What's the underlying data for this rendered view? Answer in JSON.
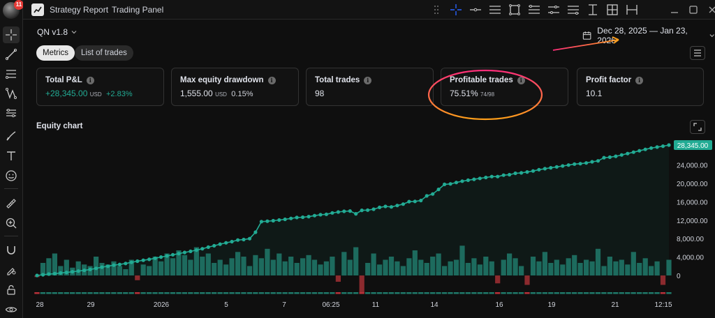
{
  "user": {
    "notification_count": "11"
  },
  "tabs": [
    {
      "label": "Strategy Report",
      "active": true
    },
    {
      "label": "Trading Panel",
      "active": false
    }
  ],
  "header": {
    "strategy_name": "QN v1.8",
    "date_range": "Dec 28, 2025 — Jan 23, 2026"
  },
  "segments": {
    "metrics_label": "Metrics",
    "trades_label": "List of trades"
  },
  "metrics": [
    {
      "label": "Total P&L",
      "value": "+28,345.00",
      "unit": "USD",
      "sub": "+2.83%",
      "positive": true
    },
    {
      "label": "Max equity drawdown",
      "value": "1,555.00",
      "unit": "USD",
      "sub": "0.15%",
      "positive": false
    },
    {
      "label": "Total trades",
      "value": "98",
      "unit": "",
      "sub": "",
      "positive": false
    },
    {
      "label": "Profitable trades",
      "value": "75.51%",
      "unit": "",
      "sub": "74/98",
      "positive": false
    },
    {
      "label": "Profit factor",
      "value": "10.1",
      "unit": "",
      "sub": "",
      "positive": false
    }
  ],
  "chart_title": "Equity chart",
  "chart_data": {
    "type": "line",
    "title": "Equity chart",
    "x_tick_labels": [
      "28",
      "29",
      "2026",
      "5",
      "7",
      "06:25",
      "11",
      "14",
      "16",
      "19",
      "21",
      "12:15"
    ],
    "y_ticks": [
      0,
      4000,
      8000,
      12000,
      16000,
      20000,
      24000
    ],
    "y_tick_labels": [
      "0",
      "4,000.00",
      "8,000.00",
      "12,000.00",
      "16,000.00",
      "20,000.00",
      "24,000.00"
    ],
    "ylim": [
      0,
      28345
    ],
    "last_value_label": "28,345.00",
    "series": [
      {
        "type": "line",
        "values": [
          0,
          150,
          300,
          400,
          550,
          650,
          800,
          950,
          1100,
          1300,
          1550,
          1800,
          2000,
          2250,
          2400,
          2600,
          2850,
          3100,
          3300,
          3500,
          3750,
          4000,
          4250,
          4500,
          4750,
          5000,
          5250,
          5500,
          5800,
          6150,
          6450,
          6800,
          7100,
          7350,
          7700,
          7800,
          8000,
          9400,
          11700,
          11800,
          11900,
          12050,
          12200,
          12400,
          12600,
          12650,
          12800,
          13000,
          13200,
          13300,
          13600,
          13800,
          13950,
          14000,
          13400,
          14150,
          14200,
          14400,
          14800,
          15000,
          14900,
          15200,
          15500,
          16050,
          16100,
          16300,
          17300,
          17700,
          18700,
          19800,
          19900,
          20200,
          20500,
          20700,
          20900,
          21100,
          21300,
          21500,
          21500,
          21800,
          21900,
          22200,
          22300,
          22500,
          22700,
          23000,
          23200,
          23400,
          23600,
          23800,
          24000,
          24200,
          24300,
          24450,
          24700,
          24900,
          25600,
          25700,
          25900,
          26200,
          26500,
          26800,
          27100,
          27400,
          27700,
          27900,
          28100,
          28345
        ]
      },
      {
        "type": "bar",
        "values": [
          -0.05,
          0.4,
          0.55,
          0.7,
          0.3,
          0.5,
          0.25,
          0.45,
          0.35,
          0.3,
          0.6,
          0.4,
          0.35,
          0.45,
          0.3,
          0.2,
          0.5,
          -0.15,
          0.35,
          0.3,
          0.6,
          0.45,
          0.7,
          0.55,
          0.8,
          0.65,
          0.5,
          0.9,
          0.6,
          0.7,
          0.4,
          0.5,
          0.35,
          0.55,
          0.75,
          0.6,
          0.3,
          0.65,
          0.55,
          0.85,
          0.5,
          0.7,
          0.45,
          0.6,
          0.4,
          0.55,
          0.65,
          0.5,
          0.35,
          0.45,
          0.6,
          -0.2,
          0.75,
          0.5,
          0.9,
          -0.55,
          0.4,
          0.7,
          0.35,
          0.5,
          0.6,
          0.45,
          0.3,
          0.55,
          0.8,
          0.5,
          0.4,
          0.6,
          0.7,
          0.3,
          0.45,
          0.5,
          0.95,
          0.4,
          0.55,
          0.35,
          0.6,
          0.45,
          -0.25,
          0.5,
          0.7,
          0.55,
          0.3,
          -0.3,
          0.6,
          0.45,
          0.75,
          0.4,
          0.5,
          0.35,
          0.55,
          0.65,
          0.4,
          0.5,
          0.45,
          0.85,
          0.3,
          0.6,
          0.45,
          0.5,
          0.35,
          0.75,
          0.4,
          0.55,
          0.3,
          0.45,
          -0.3,
          0.5
        ]
      }
    ]
  }
}
